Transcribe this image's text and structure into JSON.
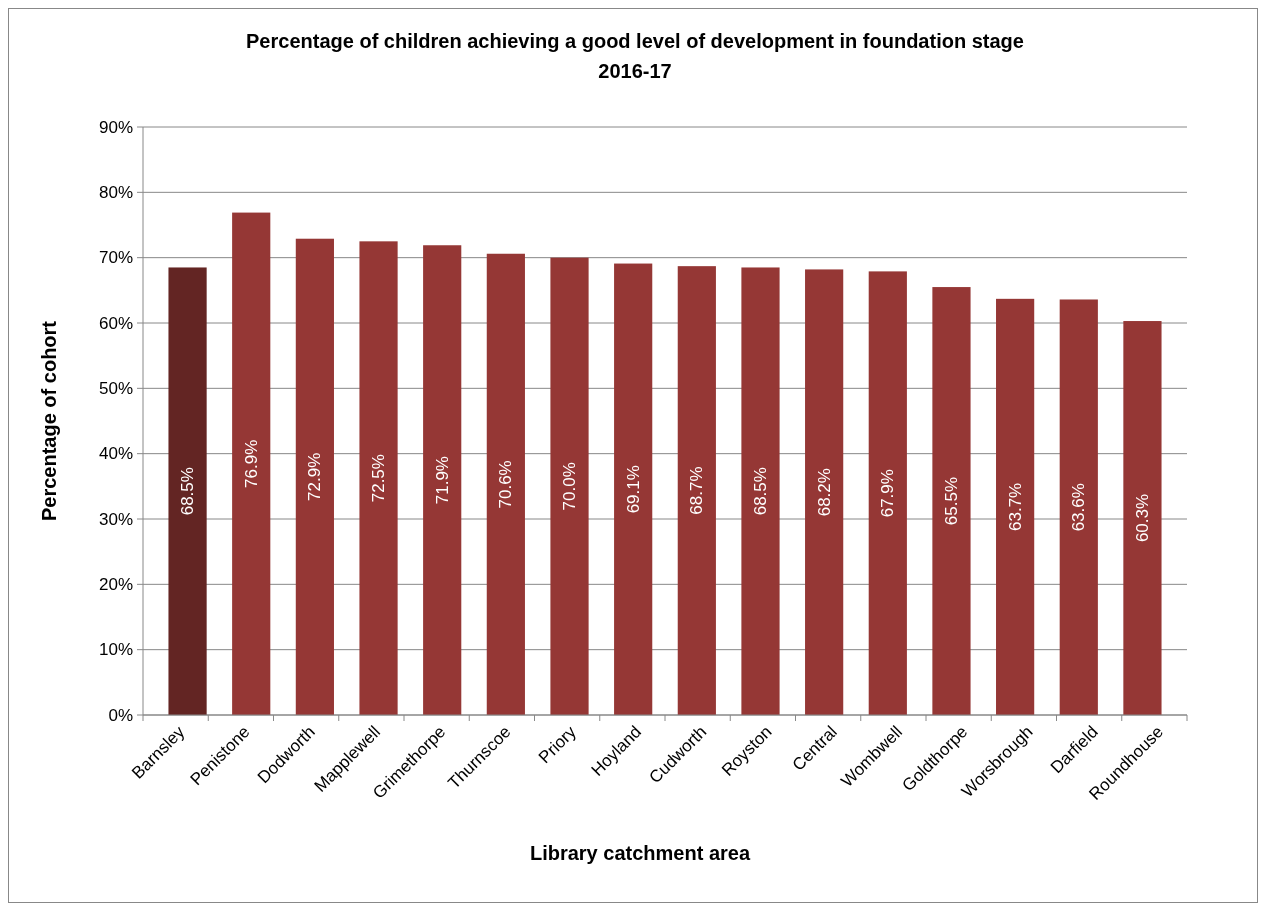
{
  "chart_data": {
    "type": "bar",
    "title": "Percentage of children achieving a good level of development in foundation stage\n2016-17",
    "xlabel": "Library catchment area",
    "ylabel": "Percentage of cohort",
    "categories": [
      "Barnsley",
      "Penistone",
      "Dodworth",
      "Mapplewell",
      "Grimethorpe",
      "Thurnscoe",
      "Priory",
      "Hoyland",
      "Cudworth",
      "Royston",
      "Central",
      "Wombwell",
      "Goldthorpe",
      "Worsbrough",
      "Darfield",
      "Roundhouse"
    ],
    "values": [
      68.5,
      76.9,
      72.9,
      72.5,
      71.9,
      70.6,
      70.0,
      69.1,
      68.7,
      68.5,
      68.2,
      67.9,
      65.5,
      63.7,
      63.6,
      60.3
    ],
    "value_labels": [
      "68.5%",
      "76.9%",
      "72.9%",
      "72.5%",
      "71.9%",
      "70.6%",
      "70.0%",
      "69.1%",
      "68.7%",
      "68.5%",
      "68.2%",
      "67.9%",
      "65.5%",
      "63.7%",
      "63.6%",
      "60.3%"
    ],
    "colors": [
      "#632523",
      "#953735",
      "#953735",
      "#953735",
      "#953735",
      "#953735",
      "#953735",
      "#953735",
      "#953735",
      "#953735",
      "#953735",
      "#953735",
      "#953735",
      "#953735",
      "#953735",
      "#953735"
    ],
    "ylim": [
      0,
      90
    ],
    "yticks": [
      {
        "value": 0,
        "label": "0%"
      },
      {
        "value": 10,
        "label": "10%"
      },
      {
        "value": 20,
        "label": "20%"
      },
      {
        "value": 30,
        "label": "30%"
      },
      {
        "value": 40,
        "label": "40%"
      },
      {
        "value": 50,
        "label": "50%"
      },
      {
        "value": 60,
        "label": "60%"
      },
      {
        "value": 70,
        "label": "70%"
      },
      {
        "value": 80,
        "label": "80%"
      },
      {
        "value": 90,
        "label": "90%"
      }
    ],
    "grid": "y"
  }
}
